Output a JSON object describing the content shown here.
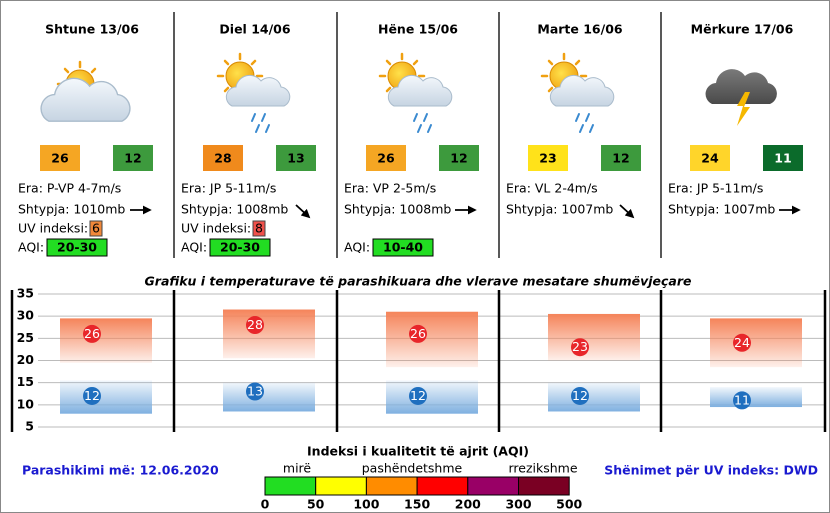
{
  "days": [
    {
      "title": "Shtune 13/06",
      "max": 26,
      "min": 12,
      "max_color": "#f5a623",
      "min_color": "#3d9a3d",
      "min_text_color": "#000000",
      "wind": "Era: P-VP 4-7m/s",
      "pressure": "Shtypja: 1010mb",
      "uv_label": "UV indeksi:",
      "uv": 6,
      "uv_color": "#f0883a",
      "aqi_label": "AQI:",
      "aqi": "20-30"
    },
    {
      "title": "Diel 14/06",
      "max": 28,
      "min": 13,
      "max_color": "#f08a1c",
      "min_color": "#3d9a3d",
      "min_text_color": "#000000",
      "wind": "Era: JP 5-11m/s",
      "pressure": "Shtypja: 1008mb",
      "uv_label": "UV indeksi:",
      "uv": 8,
      "uv_color": "#f0504a",
      "aqi_label": "AQI:",
      "aqi": "20-30"
    },
    {
      "title": "Hëne 15/06",
      "max": 26,
      "min": 12,
      "max_color": "#f5a623",
      "min_color": "#3d9a3d",
      "min_text_color": "#000000",
      "wind": "Era: VP 2-5m/s",
      "pressure": "Shtypja: 1008mb",
      "aqi_label": "AQI:",
      "aqi": "10-40"
    },
    {
      "title": "Marte 16/06",
      "max": 23,
      "min": 12,
      "max_color": "#ffe21a",
      "min_color": "#3d9a3d",
      "min_text_color": "#000000",
      "wind": "Era: VL 2-4m/s",
      "pressure": "Shtypja: 1007mb"
    },
    {
      "title": "Mërkure 17/06",
      "max": 24,
      "min": 11,
      "max_color": "#ffd52a",
      "min_color": "#0b6b2b",
      "min_text_color": "#ffffff",
      "wind": "Era: JP 5-11m/s",
      "pressure": "Shtypja: 1007mb"
    }
  ],
  "chart_data": {
    "type": "range",
    "title": "Grafiku i temperaturave të parashikuara dhe vlerave mesatare shumëvjeçare",
    "ylim": [
      5,
      35
    ],
    "yticks": [
      5,
      10,
      15,
      20,
      25,
      30,
      35
    ],
    "grid": true,
    "series": [
      {
        "color": "#e8262a",
        "values": [
          26,
          28,
          26,
          23,
          24
        ],
        "band_color": "#f5845a",
        "band_low": [
          19.5,
          20.5,
          18.5,
          20,
          18.5
        ],
        "band_high": [
          29.5,
          31.5,
          31,
          30.5,
          29.5
        ]
      },
      {
        "color": "#1f6fbf",
        "values": [
          12,
          13,
          12,
          12,
          11
        ],
        "band_color": "#7fb0e0",
        "band_low": [
          8,
          8.5,
          8,
          8.5,
          9.5
        ],
        "band_high": [
          15.5,
          15,
          15.5,
          15,
          14
        ]
      }
    ]
  },
  "aqi_legend": {
    "title": "Indeksi i kualitetit të ajrit (AQI)",
    "labels": [
      "mirë",
      "pashëndetshme",
      "rrezikshme"
    ],
    "ticks": [
      0,
      50,
      100,
      150,
      200,
      300,
      500
    ],
    "colors": [
      "#22dd22",
      "#ffff00",
      "#ff8c00",
      "#ff0000",
      "#990066",
      "#7a0023"
    ]
  },
  "forecast_date": "Parashikimi më: 12.06.2020",
  "uv_note": "Shënimet për UV indeks: DWD"
}
